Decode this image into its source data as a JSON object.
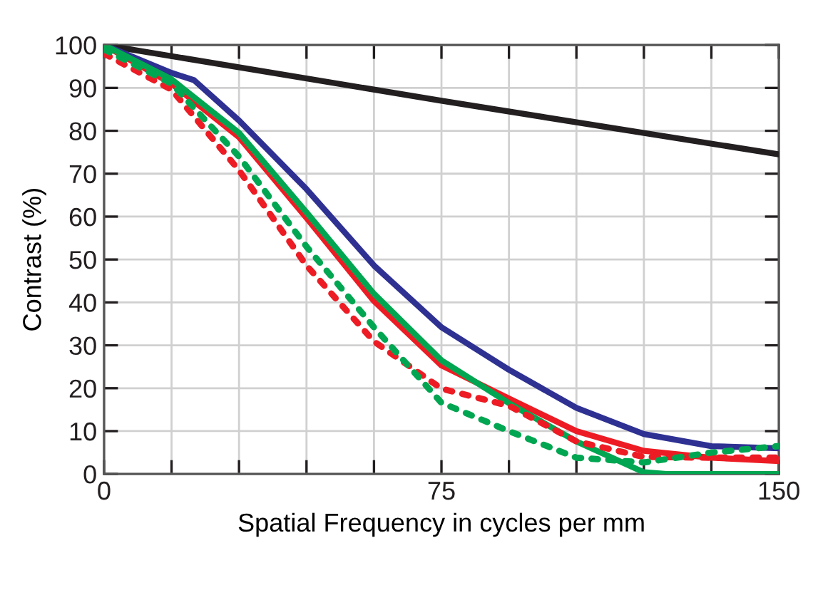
{
  "chart_data": {
    "type": "line",
    "xlabel": "Spatial Frequency in cycles per mm",
    "ylabel": "Contrast (%)",
    "xlim": [
      0,
      150
    ],
    "ylim": [
      0,
      100
    ],
    "xticks": [
      0,
      {
        "value": 15,
        "label": null
      },
      {
        "value": 30,
        "label": null
      },
      {
        "value": 45,
        "label": null
      },
      {
        "value": 60,
        "label": null
      },
      75,
      {
        "value": 90,
        "label": null
      },
      {
        "value": 105,
        "label": null
      },
      {
        "value": 120,
        "label": null
      },
      {
        "value": 135,
        "label": null
      },
      150
    ],
    "yticks": [
      0,
      10,
      20,
      30,
      40,
      50,
      60,
      70,
      80,
      90,
      100
    ],
    "grid": true,
    "legend": false,
    "marker": "none",
    "series": [
      {
        "color": "#231f20",
        "line_style": "solid",
        "x": [
          0,
          75,
          150
        ],
        "values": [
          100,
          87,
          74.5
        ]
      },
      {
        "color": "#2e3192",
        "line_style": "solid",
        "x": [
          0,
          15,
          20,
          30,
          45,
          60,
          75,
          90,
          105,
          120,
          135,
          150
        ],
        "values": [
          100,
          93.5,
          91.8,
          82.4,
          66.4,
          48.6,
          34.2,
          24.3,
          15.4,
          9.3,
          6.5,
          6
        ]
      },
      {
        "color": "#ed1c24",
        "line_style": "solid",
        "x": [
          0,
          15,
          30,
          45,
          60,
          75,
          90,
          105,
          120,
          135,
          150
        ],
        "values": [
          100,
          91,
          78.5,
          59.7,
          40.3,
          25.3,
          17.6,
          10,
          5.4,
          3.8,
          3
        ]
      },
      {
        "color": "#00a651",
        "line_style": "solid",
        "x": [
          0,
          15,
          30,
          45,
          60,
          75,
          90,
          105,
          120,
          125,
          135,
          150
        ],
        "values": [
          100,
          92,
          79.5,
          61,
          42,
          26.5,
          16.5,
          7.6,
          0.4,
          0,
          0,
          0
        ]
      },
      {
        "color": "#ed1c24",
        "line_style": "dotted",
        "x": [
          0,
          15,
          30,
          45,
          60,
          75,
          90,
          105,
          120,
          135,
          150
        ],
        "values": [
          98,
          89.6,
          70.8,
          48.6,
          30.9,
          19.9,
          15.9,
          7.6,
          4,
          3.8,
          3.8
        ]
      },
      {
        "color": "#00a651",
        "line_style": "dotted",
        "x": [
          0,
          15,
          30,
          45,
          60,
          75,
          90,
          105,
          120,
          135,
          150
        ],
        "values": [
          99,
          91,
          74,
          53,
          34.2,
          16.6,
          10,
          3.8,
          2.7,
          5,
          6.5
        ]
      }
    ]
  }
}
